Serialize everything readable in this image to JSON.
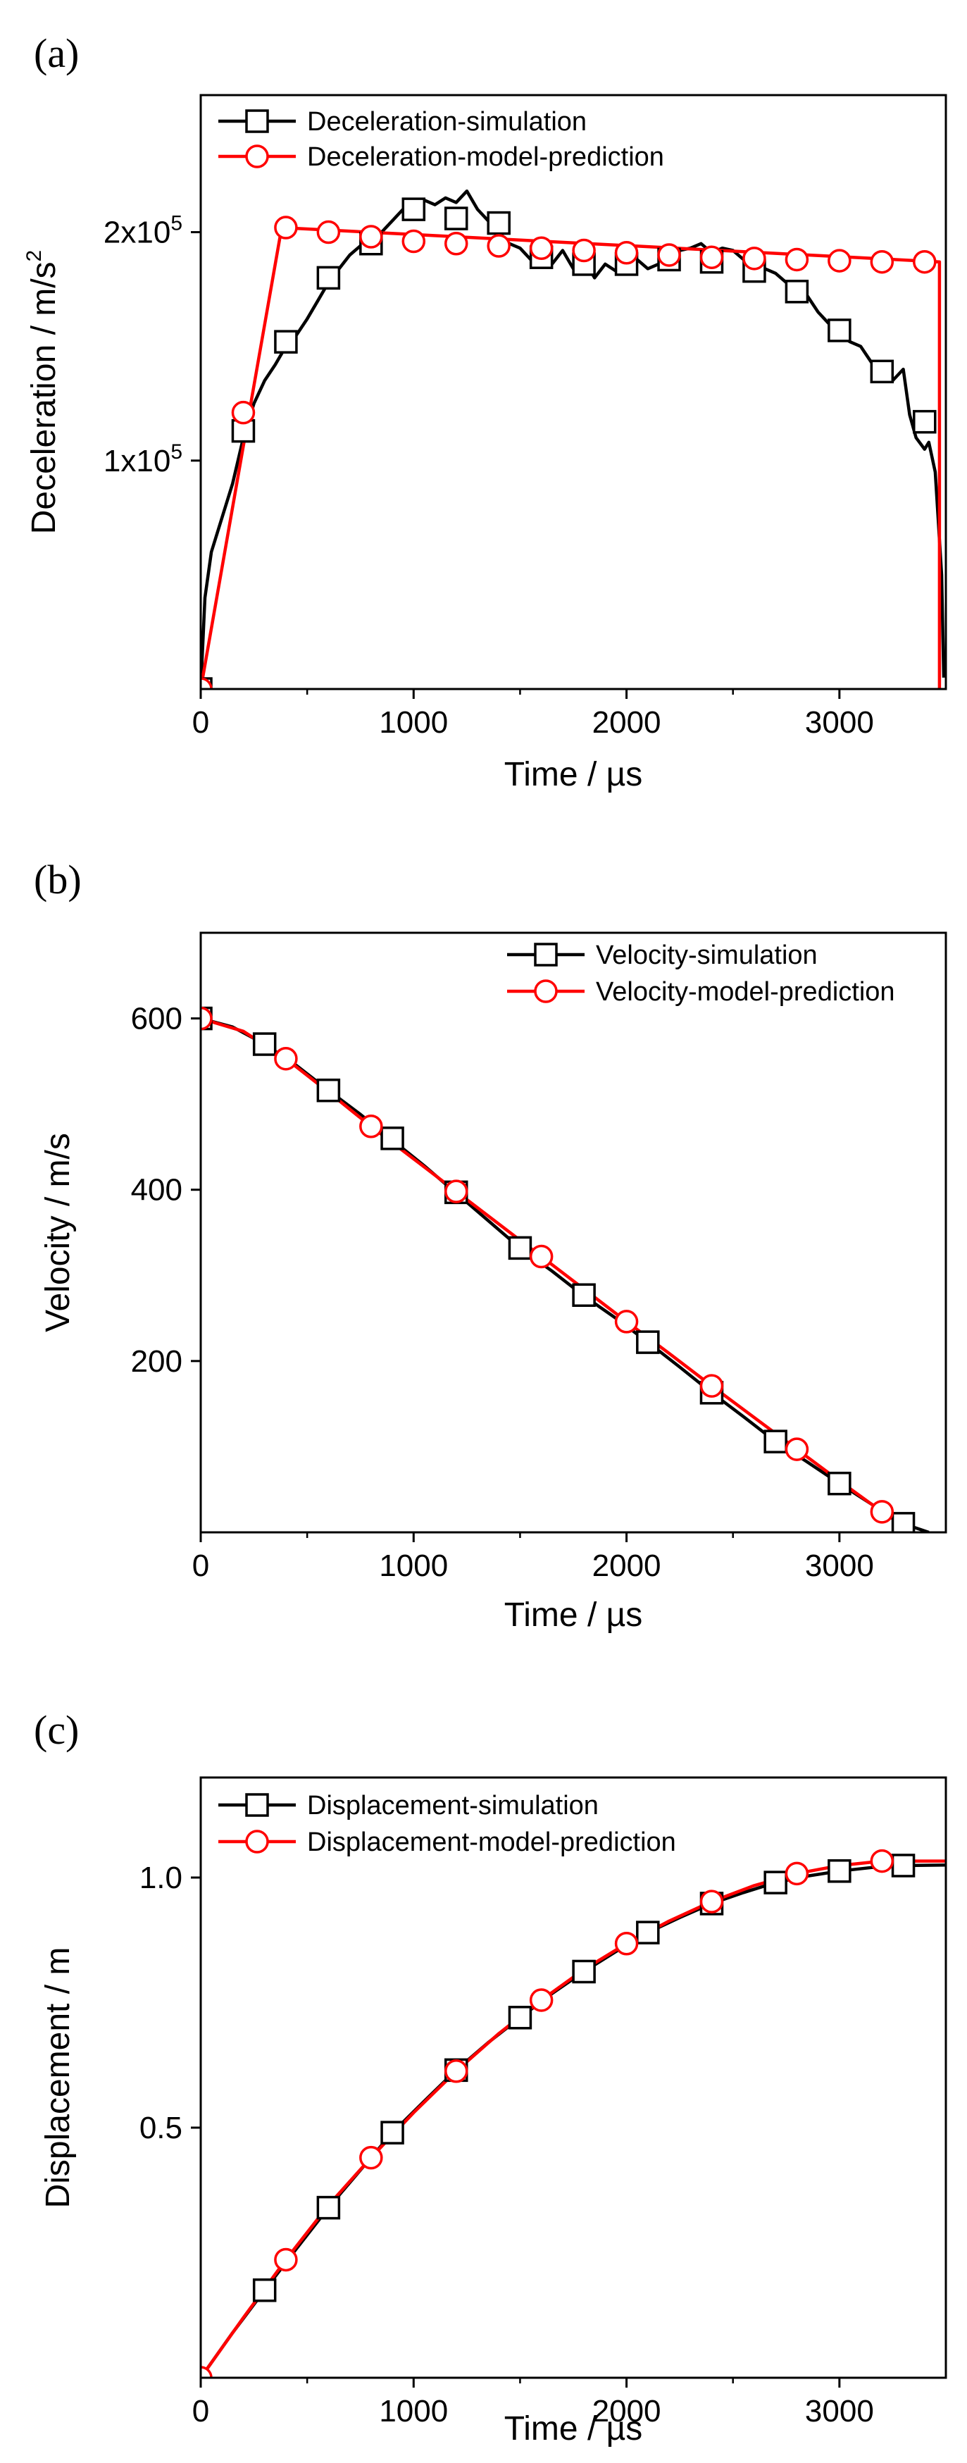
{
  "chart_data": [
    {
      "panel": "(a)",
      "type": "line",
      "xlabel": "Time / µs",
      "ylabel": "Deceleration / m/s",
      "ylabel_sup": "2",
      "xlim": [
        0,
        3500
      ],
      "ylim": [
        0,
        260000
      ],
      "xticks": [
        0,
        1000,
        2000,
        3000
      ],
      "xtick_labels": [
        "0",
        "1000",
        "2000",
        "3000"
      ],
      "yticks": [
        100000,
        200000
      ],
      "ytick_labels": [
        {
          "base": "1x10",
          "exp": "5"
        },
        {
          "base": "2x10",
          "exp": "5"
        }
      ],
      "legend_position": "top-left",
      "series": [
        {
          "name": "Deceleration-simulation",
          "color": "#000000",
          "marker": "square",
          "line_x": [
            0,
            20,
            50,
            100,
            150,
            200,
            250,
            300,
            350,
            400,
            450,
            500,
            550,
            600,
            650,
            700,
            750,
            800,
            850,
            900,
            950,
            1000,
            1050,
            1100,
            1150,
            1200,
            1250,
            1300,
            1350,
            1400,
            1450,
            1500,
            1550,
            1600,
            1650,
            1700,
            1750,
            1800,
            1850,
            1900,
            1950,
            2000,
            2050,
            2100,
            2150,
            2200,
            2250,
            2300,
            2350,
            2400,
            2450,
            2500,
            2550,
            2600,
            2650,
            2700,
            2750,
            2800,
            2850,
            2900,
            2950,
            3000,
            3050,
            3100,
            3150,
            3200,
            3250,
            3300,
            3330,
            3360,
            3400,
            3420,
            3450,
            3480,
            3490
          ],
          "line_y": [
            0,
            40000,
            60000,
            75000,
            90000,
            110000,
            125000,
            135000,
            142000,
            150000,
            155000,
            162000,
            170000,
            178000,
            184000,
            190000,
            194000,
            196000,
            200000,
            205000,
            210000,
            212000,
            214000,
            212000,
            215000,
            213000,
            218000,
            210000,
            205000,
            200000,
            195000,
            193000,
            188000,
            190000,
            186000,
            192000,
            184000,
            188000,
            180000,
            186000,
            183000,
            190000,
            188000,
            184000,
            186000,
            190000,
            192000,
            193000,
            195000,
            191000,
            193000,
            192000,
            188000,
            186000,
            184000,
            182000,
            178000,
            176000,
            172000,
            165000,
            160000,
            155000,
            152000,
            150000,
            143000,
            137000,
            135000,
            140000,
            120000,
            110000,
            105000,
            108000,
            95000,
            50000,
            5000
          ],
          "marker_x": [
            0,
            200,
            400,
            600,
            800,
            1000,
            1200,
            1400,
            1600,
            1800,
            2000,
            2200,
            2400,
            2600,
            2800,
            3000,
            3200,
            3400
          ],
          "marker_y": [
            0,
            113000,
            152000,
            180000,
            195000,
            210000,
            206000,
            204000,
            189000,
            186000,
            186000,
            188000,
            187000,
            183000,
            174000,
            157000,
            139000,
            117000
          ]
        },
        {
          "name": "Deceleration-model-prediction",
          "color": "#ff0000",
          "marker": "circle",
          "line_x": [
            0,
            380,
            3470,
            3470
          ],
          "line_y": [
            0,
            202000,
            187000,
            0
          ],
          "marker_x": [
            0,
            200,
            400,
            600,
            800,
            1000,
            1200,
            1400,
            1600,
            1800,
            2000,
            2200,
            2400,
            2600,
            2800,
            3000,
            3200,
            3400
          ],
          "marker_y": [
            0,
            121000,
            202000,
            200000,
            198000,
            196000,
            195000,
            194000,
            193000,
            192000,
            191000,
            190000,
            189000,
            188500,
            188000,
            187500,
            187000,
            187000
          ]
        }
      ]
    },
    {
      "panel": "(b)",
      "type": "line",
      "xlabel": "Time / µs",
      "ylabel": "Velocity / m/s",
      "xlim": [
        0,
        3500
      ],
      "ylim": [
        0,
        700
      ],
      "xticks": [
        0,
        1000,
        2000,
        3000
      ],
      "xtick_labels": [
        "0",
        "1000",
        "2000",
        "3000"
      ],
      "yticks": [
        200,
        400,
        600
      ],
      "ytick_labels": [
        "200",
        "400",
        "600"
      ],
      "legend_position": "top-right",
      "series": [
        {
          "name": "Velocity-simulation",
          "color": "#000000",
          "marker": "square",
          "line_x": [
            0,
            150,
            300,
            450,
            600,
            750,
            900,
            1050,
            1200,
            1350,
            1500,
            1650,
            1800,
            1950,
            2100,
            2250,
            2400,
            2550,
            2700,
            2850,
            3000,
            3150,
            3300,
            3420
          ],
          "line_y": [
            600,
            590,
            570,
            545,
            516,
            488,
            458,
            428,
            396,
            364,
            332,
            305,
            276,
            250,
            222,
            193,
            163,
            135,
            106,
            82,
            57,
            33,
            10,
            0
          ],
          "marker_x": [
            0,
            300,
            600,
            900,
            1200,
            1500,
            1800,
            2100,
            2400,
            2700,
            3000,
            3300
          ],
          "marker_y": [
            600,
            570,
            516,
            460,
            397,
            332,
            277,
            222,
            163,
            106,
            57,
            10
          ]
        },
        {
          "name": "Velocity-model-prediction",
          "color": "#ff0000",
          "marker": "circle",
          "line_x": [
            0,
            200,
            400,
            600,
            800,
            1000,
            1200,
            1400,
            1600,
            1800,
            2000,
            2200,
            2400,
            2600,
            2800,
            3000,
            3200,
            3350
          ],
          "line_y": [
            600,
            585,
            553,
            514,
            474,
            436,
            398,
            360,
            322,
            284,
            246,
            209,
            171,
            134,
            97,
            60,
            24,
            0
          ],
          "marker_x": [
            0,
            400,
            800,
            1200,
            1600,
            2000,
            2400,
            2800,
            3200
          ],
          "marker_y": [
            600,
            553,
            474,
            398,
            322,
            246,
            171,
            97,
            24
          ]
        }
      ]
    },
    {
      "panel": "(c)",
      "type": "line",
      "xlabel": "Time / µs",
      "ylabel": "Displacement / m",
      "xlim": [
        0,
        3500
      ],
      "ylim": [
        0,
        1.2
      ],
      "xticks": [
        0,
        1000,
        2000,
        3000
      ],
      "xtick_labels": [
        "0",
        "1000",
        "2000",
        "3000"
      ],
      "yticks": [
        0.5,
        1.0
      ],
      "ytick_labels": [
        "0.5",
        "1.0"
      ],
      "legend_position": "top-left",
      "series": [
        {
          "name": "Displacement-simulation",
          "color": "#000000",
          "marker": "square",
          "line_x": [
            0,
            150,
            300,
            450,
            600,
            750,
            900,
            1050,
            1200,
            1350,
            1500,
            1650,
            1800,
            1950,
            2100,
            2250,
            2400,
            2550,
            2700,
            2850,
            3000,
            3150,
            3300,
            3500
          ],
          "line_y": [
            0,
            0.09,
            0.175,
            0.258,
            0.34,
            0.415,
            0.49,
            0.553,
            0.615,
            0.67,
            0.72,
            0.768,
            0.812,
            0.852,
            0.89,
            0.92,
            0.948,
            0.97,
            0.99,
            1.003,
            1.013,
            1.02,
            1.024,
            1.025
          ],
          "marker_x": [
            300,
            600,
            900,
            1200,
            1500,
            1800,
            2100,
            2400,
            2700,
            3000,
            3300
          ],
          "marker_y": [
            0.175,
            0.34,
            0.49,
            0.615,
            0.72,
            0.812,
            0.89,
            0.948,
            0.99,
            1.013,
            1.024
          ]
        },
        {
          "name": "Displacement-model-prediction",
          "color": "#ff0000",
          "marker": "circle",
          "line_x": [
            0,
            200,
            400,
            600,
            800,
            1000,
            1200,
            1400,
            1600,
            1800,
            2000,
            2200,
            2400,
            2600,
            2800,
            3000,
            3200,
            3500
          ],
          "line_y": [
            0,
            0.12,
            0.236,
            0.345,
            0.44,
            0.53,
            0.613,
            0.688,
            0.755,
            0.816,
            0.868,
            0.913,
            0.952,
            0.984,
            1.008,
            1.024,
            1.033,
            1.033
          ],
          "marker_x": [
            0,
            400,
            800,
            1200,
            1600,
            2000,
            2400,
            2800,
            3200
          ],
          "marker_y": [
            0,
            0.236,
            0.44,
            0.613,
            0.755,
            0.868,
            0.952,
            1.008,
            1.033
          ]
        }
      ]
    }
  ]
}
